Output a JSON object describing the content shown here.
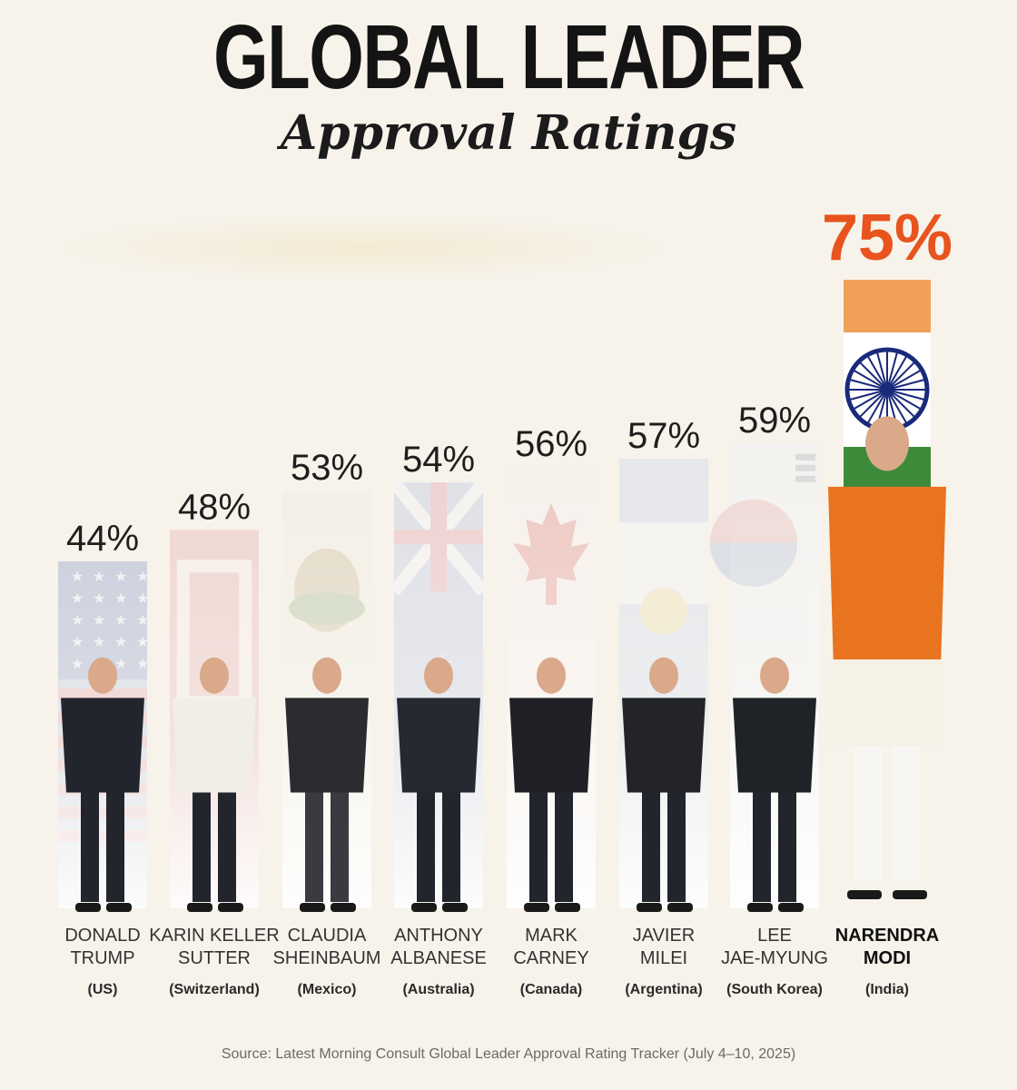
{
  "title": "GLOBAL LEADER",
  "subtitle": "Approval Ratings",
  "source": "Source: Latest Morning Consult Global Leader Approval Rating Tracker (July 4–10, 2025)",
  "colors": {
    "highlight": "#e8531e",
    "text": "#1e1e1e",
    "country": "#2a2a2a",
    "background": "#f7f3ea"
  },
  "chart_data": {
    "type": "bar",
    "unit": "%",
    "categories": [
      "US",
      "Switzerland",
      "Mexico",
      "Australia",
      "Canada",
      "Argentina",
      "South Korea",
      "India"
    ],
    "values": [
      44,
      48,
      53,
      54,
      56,
      57,
      59,
      75
    ],
    "value_labels": [
      "44%",
      "48%",
      "53%",
      "54%",
      "56%",
      "57%",
      "59%",
      "75%"
    ],
    "names": [
      [
        "DONALD",
        "TRUMP"
      ],
      [
        "KARIN KELLER",
        "SUTTER"
      ],
      [
        "CLAUDIA",
        "SHEINBAUM"
      ],
      [
        "ANTHONY",
        "ALBANESE"
      ],
      [
        "MARK",
        "CARNEY"
      ],
      [
        "JAVIER",
        "MILEI"
      ],
      [
        "LEE",
        "JAE-MYUNG"
      ],
      [
        "NARENDRA",
        "MODI"
      ]
    ],
    "country_labels": [
      "(US)",
      "(Switzerland)",
      "(Mexico)",
      "(Australia)",
      "(Canada)",
      "(Argentina)",
      "(South Korea)",
      "(India)"
    ],
    "highlight_index": 7,
    "flags": [
      "flag-us",
      "flag-switzerland",
      "flag-mexico",
      "flag-australia",
      "flag-canada",
      "flag-argentina",
      "flag-south-korea",
      "flag-india"
    ],
    "ylim": [
      0,
      75
    ]
  }
}
